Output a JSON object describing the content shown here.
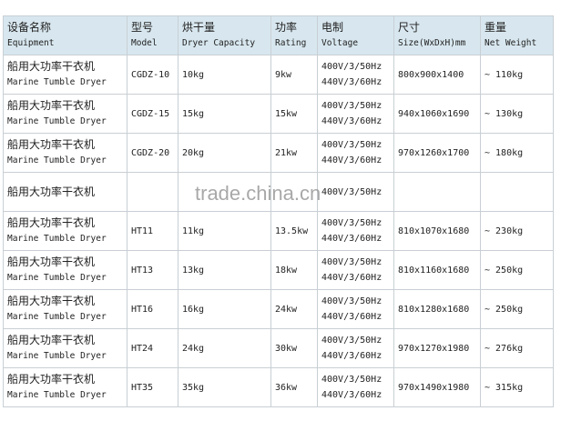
{
  "headers": [
    {
      "zh": "设备名称",
      "en": "Equipment"
    },
    {
      "zh": "型号",
      "en": "Model"
    },
    {
      "zh": "烘干量",
      "en": "Dryer Capacity"
    },
    {
      "zh": "功率",
      "en": "Rating"
    },
    {
      "zh": "电制",
      "en": "Voltage"
    },
    {
      "zh": "尺寸",
      "en": "Size(WxDxH)mm"
    },
    {
      "zh": "重量",
      "en": "Net Weight"
    }
  ],
  "rows": [
    {
      "name_zh": "船用大功率干衣机",
      "name_en": "Marine Tumble Dryer",
      "model": "CGDZ-10",
      "capacity": "10kg",
      "rating": "9kw",
      "v1": "400V/3/50Hz",
      "v2": "440V/3/60Hz",
      "size": "800x900x1400",
      "weight": "~ 110kg"
    },
    {
      "name_zh": "船用大功率干衣机",
      "name_en": "Marine Tumble Dryer",
      "model": "CGDZ-15",
      "capacity": "15kg",
      "rating": "15kw",
      "v1": "400V/3/50Hz",
      "v2": "440V/3/60Hz",
      "size": "940x1060x1690",
      "weight": "~ 130kg"
    },
    {
      "name_zh": "船用大功率干衣机",
      "name_en": "Marine Tumble Dryer",
      "model": "CGDZ-20",
      "capacity": "20kg",
      "rating": "21kw",
      "v1": "400V/3/50Hz",
      "v2": "440V/3/60Hz",
      "size": "970x1260x1700",
      "weight": "~ 180kg"
    },
    {
      "name_zh": "船用大功率干衣机",
      "name_en": "",
      "model": "",
      "capacity": "",
      "rating": "",
      "v1": "400V/3/50Hz",
      "v2": "",
      "size": "",
      "weight": ""
    },
    {
      "name_zh": "船用大功率干衣机",
      "name_en": "Marine Tumble Dryer",
      "model": "HT11",
      "capacity": "11kg",
      "rating": "13.5kw",
      "v1": "400V/3/50Hz",
      "v2": "440V/3/60Hz",
      "size": "810x1070x1680",
      "weight": "~ 230kg"
    },
    {
      "name_zh": "船用大功率干衣机",
      "name_en": "Marine Tumble Dryer",
      "model": "HT13",
      "capacity": "13kg",
      "rating": "18kw",
      "v1": "400V/3/50Hz",
      "v2": "440V/3/60Hz",
      "size": "810x1160x1680",
      "weight": "~ 250kg"
    },
    {
      "name_zh": "船用大功率干衣机",
      "name_en": "Marine Tumble Dryer",
      "model": "HT16",
      "capacity": "16kg",
      "rating": "24kw",
      "v1": "400V/3/50Hz",
      "v2": "440V/3/60Hz",
      "size": "810x1280x1680",
      "weight": "~ 250kg"
    },
    {
      "name_zh": "船用大功率干衣机",
      "name_en": "Marine Tumble Dryer",
      "model": "HT24",
      "capacity": "24kg",
      "rating": "30kw",
      "v1": "400V/3/50Hz",
      "v2": "440V/3/60Hz",
      "size": "970x1270x1980",
      "weight": "~ 276kg"
    },
    {
      "name_zh": "船用大功率干衣机",
      "name_en": "Marine Tumble Dryer",
      "model": "HT35",
      "capacity": "35kg",
      "rating": "36kw",
      "v1": "400V/3/50Hz",
      "v2": "440V/3/60Hz",
      "size": "970x1490x1980",
      "weight": "~ 315kg"
    }
  ],
  "watermark": "trade.china.cn"
}
